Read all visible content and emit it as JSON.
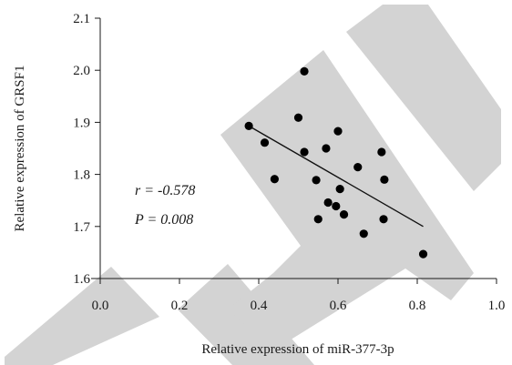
{
  "chart_data": {
    "type": "scatter",
    "title": "",
    "xlabel": "Relative expression of miR-377-3p",
    "ylabel": "Relative expression of GRSF1",
    "xlim": [
      0.0,
      1.0
    ],
    "ylim": [
      1.6,
      2.1
    ],
    "xticks": [
      "0.0",
      "0.2",
      "0.4",
      "0.6",
      "0.8",
      "1.0"
    ],
    "yticks": [
      "1.6",
      "1.7",
      "1.8",
      "1.9",
      "2.0",
      "2.1"
    ],
    "grid": false,
    "points": [
      {
        "x": 0.375,
        "y": 1.893
      },
      {
        "x": 0.415,
        "y": 1.861
      },
      {
        "x": 0.44,
        "y": 1.791
      },
      {
        "x": 0.5,
        "y": 1.909
      },
      {
        "x": 0.515,
        "y": 1.998
      },
      {
        "x": 0.515,
        "y": 1.843
      },
      {
        "x": 0.545,
        "y": 1.789
      },
      {
        "x": 0.55,
        "y": 1.714
      },
      {
        "x": 0.57,
        "y": 1.85
      },
      {
        "x": 0.575,
        "y": 1.746
      },
      {
        "x": 0.595,
        "y": 1.739
      },
      {
        "x": 0.6,
        "y": 1.883
      },
      {
        "x": 0.605,
        "y": 1.772
      },
      {
        "x": 0.615,
        "y": 1.723
      },
      {
        "x": 0.65,
        "y": 1.814
      },
      {
        "x": 0.665,
        "y": 1.686
      },
      {
        "x": 0.71,
        "y": 1.843
      },
      {
        "x": 0.715,
        "y": 1.714
      },
      {
        "x": 0.717,
        "y": 1.79
      },
      {
        "x": 0.815,
        "y": 1.647
      }
    ],
    "fit_line": {
      "x": [
        0.375,
        0.815
      ],
      "y": [
        1.893,
        1.7
      ]
    },
    "annotations": {
      "r": "r = -0.578",
      "p": "P = 0.008"
    }
  }
}
